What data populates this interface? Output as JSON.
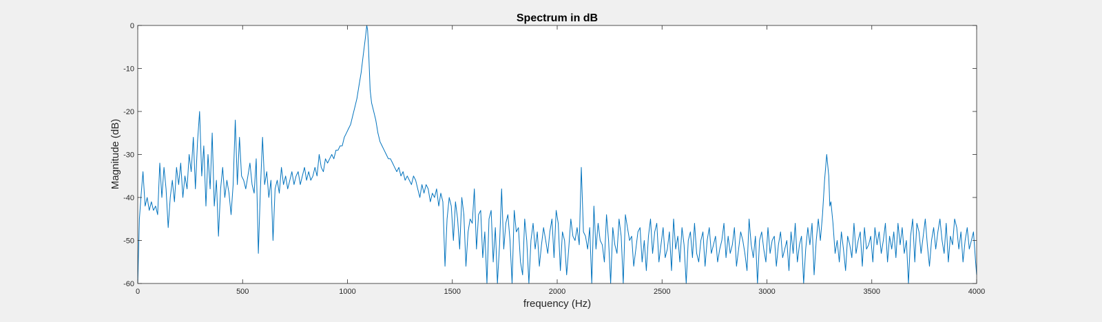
{
  "chart_data": {
    "type": "line",
    "title": "Spectrum in dB",
    "xlabel": "frequency (Hz)",
    "ylabel": "Magnitude (dB)",
    "xlim": [
      0,
      4000
    ],
    "ylim": [
      -60,
      0
    ],
    "x_ticks": [
      0,
      500,
      1000,
      1500,
      2000,
      2500,
      3000,
      3500,
      4000
    ],
    "x_tick_labels": [
      "0",
      "500",
      "1000",
      "1500",
      "2000",
      "2500",
      "3000",
      "3500",
      "4000"
    ],
    "y_ticks": [
      0,
      -10,
      -20,
      -30,
      -40,
      -50,
      -60
    ],
    "y_tick_labels": [
      "0",
      "-10",
      "-20",
      "-30",
      "-40",
      "-50",
      "-60"
    ],
    "grid": false,
    "series": [
      {
        "color": "#0072bd",
        "x": [
          0,
          8,
          15,
          25,
          35,
          45,
          55,
          65,
          75,
          85,
          95,
          105,
          115,
          125,
          135,
          145,
          155,
          165,
          175,
          185,
          195,
          205,
          215,
          225,
          235,
          245,
          255,
          265,
          275,
          285,
          295,
          305,
          315,
          325,
          335,
          345,
          355,
          365,
          375,
          385,
          395,
          405,
          415,
          425,
          435,
          445,
          455,
          465,
          475,
          485,
          495,
          505,
          515,
          525,
          535,
          545,
          555,
          565,
          575,
          585,
          595,
          605,
          615,
          625,
          635,
          645,
          655,
          665,
          675,
          685,
          695,
          705,
          715,
          725,
          735,
          745,
          755,
          765,
          775,
          785,
          795,
          805,
          815,
          825,
          835,
          845,
          855,
          865,
          875,
          885,
          895,
          905,
          915,
          925,
          935,
          945,
          955,
          965,
          975,
          985,
          995,
          1005,
          1015,
          1025,
          1035,
          1045,
          1055,
          1065,
          1075,
          1085,
          1092,
          1096,
          1100,
          1104,
          1108,
          1115,
          1125,
          1135,
          1145,
          1155,
          1165,
          1175,
          1185,
          1195,
          1205,
          1215,
          1225,
          1235,
          1245,
          1255,
          1265,
          1275,
          1285,
          1295,
          1305,
          1315,
          1325,
          1335,
          1345,
          1355,
          1365,
          1375,
          1385,
          1395,
          1405,
          1415,
          1425,
          1435,
          1445,
          1455,
          1465,
          1475,
          1485,
          1495,
          1505,
          1515,
          1525,
          1535,
          1545,
          1555,
          1565,
          1575,
          1585,
          1595,
          1605,
          1615,
          1625,
          1635,
          1645,
          1655,
          1665,
          1675,
          1685,
          1695,
          1705,
          1715,
          1725,
          1735,
          1745,
          1755,
          1765,
          1775,
          1785,
          1795,
          1805,
          1815,
          1825,
          1835,
          1845,
          1855,
          1865,
          1875,
          1885,
          1895,
          1905,
          1915,
          1925,
          1935,
          1945,
          1955,
          1965,
          1975,
          1985,
          1995,
          2005,
          2015,
          2025,
          2035,
          2045,
          2055,
          2065,
          2075,
          2085,
          2095,
          2105,
          2115,
          2125,
          2135,
          2145,
          2155,
          2165,
          2175,
          2185,
          2195,
          2205,
          2215,
          2225,
          2235,
          2245,
          2255,
          2265,
          2275,
          2285,
          2295,
          2305,
          2315,
          2325,
          2335,
          2345,
          2355,
          2365,
          2375,
          2385,
          2395,
          2405,
          2415,
          2425,
          2435,
          2445,
          2455,
          2465,
          2475,
          2485,
          2495,
          2505,
          2515,
          2525,
          2535,
          2545,
          2555,
          2565,
          2575,
          2585,
          2595,
          2605,
          2615,
          2625,
          2635,
          2645,
          2655,
          2665,
          2675,
          2685,
          2695,
          2705,
          2715,
          2725,
          2735,
          2745,
          2755,
          2765,
          2775,
          2785,
          2795,
          2805,
          2815,
          2825,
          2835,
          2845,
          2855,
          2865,
          2875,
          2885,
          2895,
          2905,
          2915,
          2925,
          2935,
          2945,
          2955,
          2965,
          2975,
          2985,
          2995,
          3005,
          3015,
          3025,
          3035,
          3045,
          3055,
          3065,
          3075,
          3085,
          3095,
          3105,
          3115,
          3125,
          3135,
          3145,
          3155,
          3165,
          3175,
          3185,
          3195,
          3205,
          3215,
          3225,
          3235,
          3245,
          3255,
          3265,
          3275,
          3285,
          3295,
          3300,
          3305,
          3315,
          3325,
          3335,
          3345,
          3355,
          3365,
          3375,
          3385,
          3395,
          3405,
          3415,
          3425,
          3435,
          3445,
          3455,
          3465,
          3475,
          3485,
          3495,
          3505,
          3515,
          3525,
          3535,
          3545,
          3555,
          3565,
          3575,
          3585,
          3595,
          3605,
          3615,
          3625,
          3635,
          3645,
          3655,
          3665,
          3675,
          3685,
          3695,
          3705,
          3715,
          3725,
          3735,
          3745,
          3755,
          3765,
          3775,
          3785,
          3795,
          3805,
          3815,
          3825,
          3835,
          3845,
          3855,
          3865,
          3875,
          3885,
          3895,
          3905,
          3915,
          3925,
          3935,
          3945,
          3955,
          3965,
          3975,
          3985,
          3995,
          4000
        ],
        "y": [
          -60,
          -45,
          -40,
          -34,
          -42,
          -40,
          -43,
          -41,
          -43,
          -42,
          -44,
          -32,
          -40,
          -33,
          -38,
          -47,
          -40,
          -36,
          -41,
          -33,
          -37,
          -32,
          -40,
          -35,
          -38,
          -30,
          -34,
          -26,
          -38,
          -27,
          -20,
          -35,
          -28,
          -42,
          -30,
          -38,
          -25,
          -42,
          -36,
          -49,
          -38,
          -33,
          -40,
          -36,
          -39,
          -44,
          -37,
          -22,
          -37,
          -26,
          -35,
          -36,
          -38,
          -35,
          -32,
          -37,
          -39,
          -31,
          -53,
          -38,
          -26,
          -37,
          -34,
          -40,
          -36,
          -50,
          -38,
          -36,
          -39,
          -33,
          -37,
          -35,
          -38,
          -36,
          -34,
          -37,
          -35,
          -34,
          -37,
          -35,
          -33,
          -36,
          -34,
          -36,
          -35,
          -33,
          -35,
          -30,
          -33,
          -34,
          -31,
          -32,
          -31,
          -30,
          -31,
          -29,
          -29,
          -28,
          -28,
          -26,
          -25,
          -24,
          -23,
          -21,
          -19,
          -17,
          -14,
          -11,
          -7,
          -3,
          0,
          -1,
          -5,
          -10,
          -15,
          -18,
          -20,
          -22,
          -25,
          -27,
          -28,
          -29,
          -30,
          -31,
          -31,
          -32,
          -33,
          -34,
          -33,
          -35,
          -34,
          -36,
          -35,
          -36,
          -37,
          -35,
          -36,
          -38,
          -40,
          -37,
          -39,
          -37,
          -38,
          -41,
          -39,
          -40,
          -38,
          -42,
          -39,
          -41,
          -56,
          -45,
          -40,
          -42,
          -50,
          -41,
          -45,
          -52,
          -40,
          -44,
          -56,
          -48,
          -45,
          -46,
          -38,
          -52,
          -44,
          -43,
          -54,
          -48,
          -60,
          -45,
          -43,
          -55,
          -47,
          -60,
          -51,
          -38,
          -52,
          -46,
          -44,
          -50,
          -60,
          -43,
          -48,
          -47,
          -55,
          -58,
          -45,
          -50,
          -60,
          -50,
          -46,
          -52,
          -48,
          -56,
          -51,
          -47,
          -50,
          -53,
          -48,
          -45,
          -54,
          -43,
          -46,
          -57,
          -48,
          -50,
          -58,
          -52,
          -45,
          -49,
          -50,
          -47,
          -51,
          -33,
          -48,
          -49,
          -52,
          -47,
          -60,
          -42,
          -52,
          -46,
          -50,
          -51,
          -55,
          -44,
          -50,
          -60,
          -47,
          -51,
          -53,
          -45,
          -49,
          -60,
          -44,
          -47,
          -50,
          -49,
          -56,
          -52,
          -48,
          -47,
          -55,
          -50,
          -57,
          -49,
          -45,
          -53,
          -48,
          -46,
          -55,
          -51,
          -47,
          -54,
          -52,
          -48,
          -57,
          -45,
          -52,
          -49,
          -55,
          -47,
          -51,
          -60,
          -50,
          -48,
          -54,
          -46,
          -53,
          -55,
          -50,
          -48,
          -56,
          -50,
          -47,
          -53,
          -51,
          -49,
          -55,
          -52,
          -50,
          -46,
          -54,
          -49,
          -53,
          -51,
          -47,
          -56,
          -52,
          -48,
          -50,
          -53,
          -57,
          -45,
          -51,
          -54,
          -49,
          -60,
          -50,
          -48,
          -52,
          -55,
          -47,
          -53,
          -50,
          -49,
          -56,
          -51,
          -48,
          -54,
          -52,
          -50,
          -57,
          -48,
          -53,
          -46,
          -55,
          -51,
          -49,
          -60,
          -52,
          -47,
          -51,
          -46,
          -58,
          -50,
          -45,
          -50,
          -44,
          -36,
          -30,
          -35,
          -42,
          -41,
          -46,
          -53,
          -50,
          -55,
          -48,
          -52,
          -57,
          -49,
          -51,
          -54,
          -46,
          -53,
          -50,
          -48,
          -56,
          -47,
          -52,
          -51,
          -49,
          -55,
          -47,
          -51,
          -48,
          -53,
          -50,
          -46,
          -55,
          -49,
          -52,
          -48,
          -54,
          -46,
          -51,
          -47,
          -53,
          -50,
          -60,
          -49,
          -45,
          -55,
          -46,
          -48,
          -53,
          -49,
          -45,
          -51,
          -56,
          -50,
          -47,
          -52,
          -48,
          -45,
          -50,
          -53,
          -46,
          -55,
          -49,
          -51,
          -45,
          -47,
          -52,
          -48,
          -55,
          -50,
          -47,
          -52,
          -50,
          -48,
          -55,
          -58
        ]
      }
    ]
  }
}
